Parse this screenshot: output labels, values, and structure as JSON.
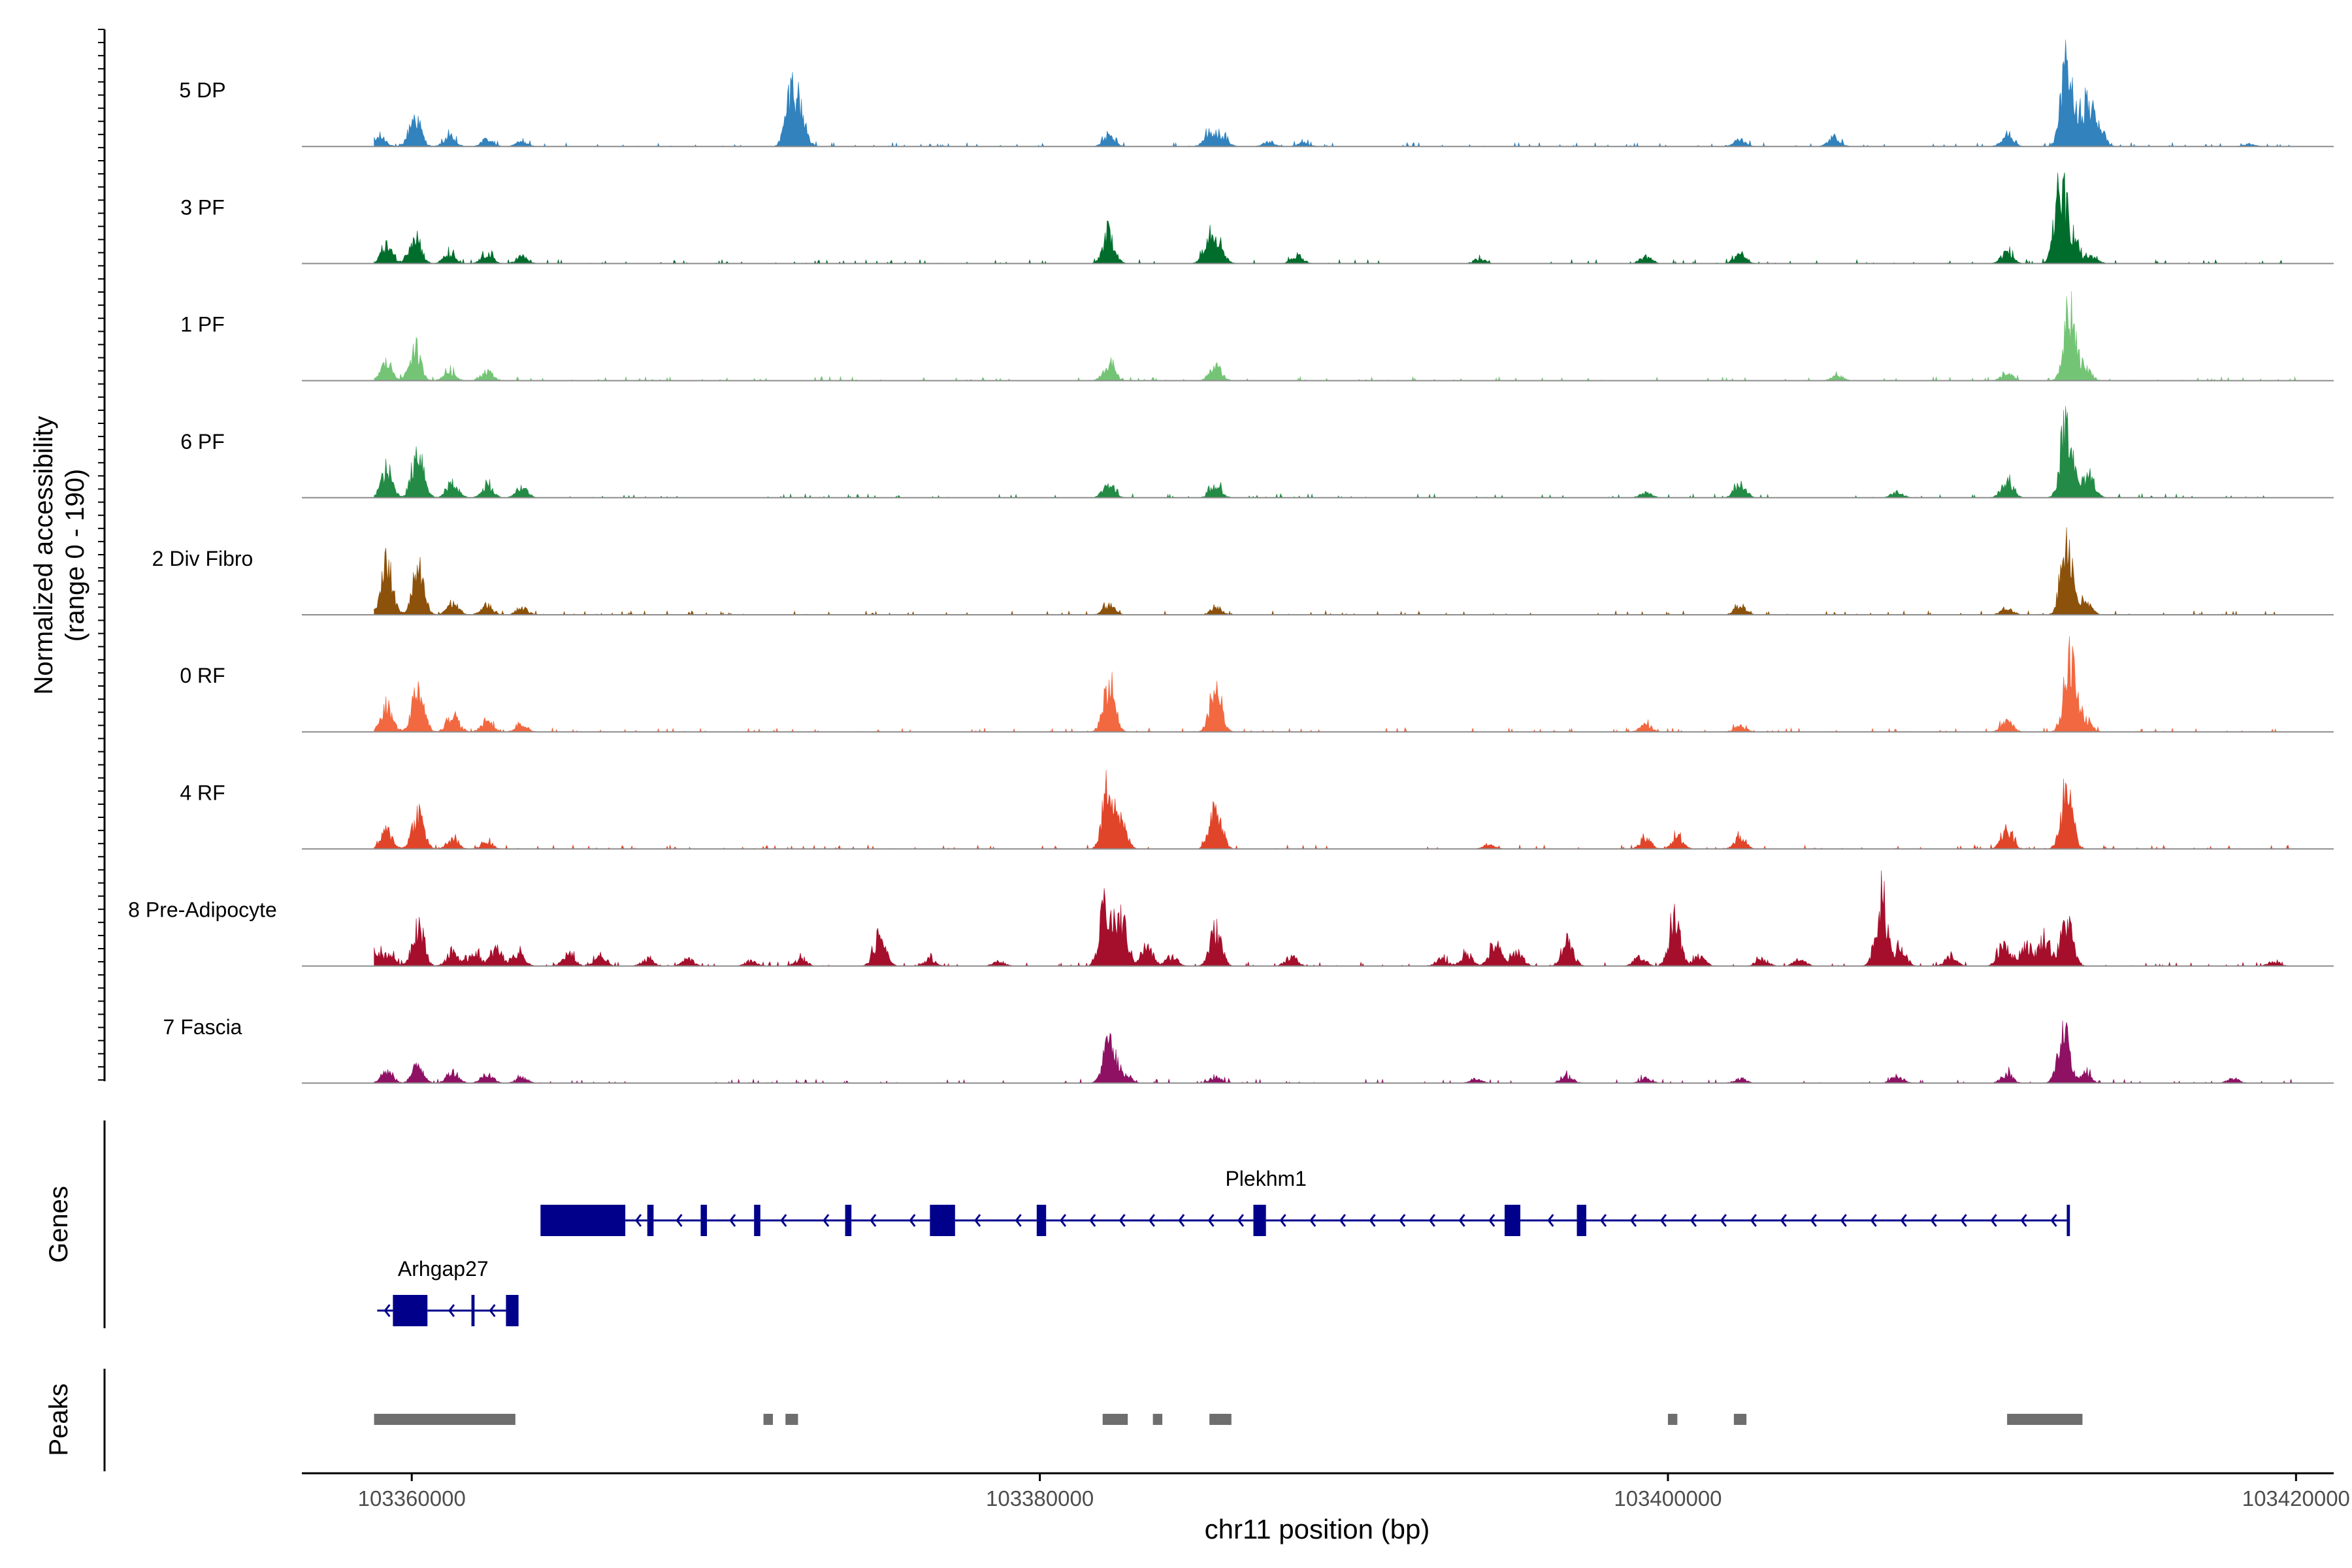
{
  "chart_data": {
    "type": "area",
    "title": "",
    "ylabel_line1": "Normalized accessibility",
    "ylabel_line2": "(range 0 - 190)",
    "xlabel": "chr11 position (bp)",
    "xlim": [
      103356500,
      103421200
    ],
    "ylim": [
      0,
      190
    ],
    "x_ticks": [
      103360000,
      103380000,
      103400000,
      103420000
    ],
    "x_tick_labels": [
      "103360000",
      "103380000",
      "103400000",
      "103420000"
    ],
    "region_start": 103358800,
    "region_end": 103420000,
    "series": [
      {
        "name": "5 DP",
        "color": "#3182bd",
        "peaks": [
          [
            103359000,
            8
          ],
          [
            103360100,
            25
          ],
          [
            103361200,
            8
          ],
          [
            103362400,
            6
          ],
          [
            103363500,
            4
          ],
          [
            103372100,
            46
          ],
          [
            103372400,
            20
          ],
          [
            103382200,
            8
          ],
          [
            103385400,
            10
          ],
          [
            103385800,
            8
          ],
          [
            103387300,
            4
          ],
          [
            103388400,
            3
          ],
          [
            103402300,
            6
          ],
          [
            103405300,
            8
          ],
          [
            103410800,
            10
          ],
          [
            103412700,
            65
          ],
          [
            103413300,
            35
          ],
          [
            103413700,
            18
          ],
          [
            103418500,
            2
          ]
        ]
      },
      {
        "name": "3 PF",
        "color": "#006d2c",
        "peaks": [
          [
            103359200,
            15
          ],
          [
            103360100,
            25
          ],
          [
            103361200,
            8
          ],
          [
            103362400,
            8
          ],
          [
            103363500,
            6
          ],
          [
            103382200,
            25
          ],
          [
            103385400,
            24
          ],
          [
            103385700,
            14
          ],
          [
            103388200,
            7
          ],
          [
            103394000,
            4
          ],
          [
            103399300,
            6
          ],
          [
            103402300,
            9
          ],
          [
            103410800,
            10
          ],
          [
            103412500,
            60
          ],
          [
            103412900,
            20
          ],
          [
            103413500,
            6
          ]
        ]
      },
      {
        "name": "1 PF",
        "color": "#74c476",
        "peaks": [
          [
            103359200,
            15
          ],
          [
            103360100,
            25
          ],
          [
            103361200,
            8
          ],
          [
            103362400,
            8
          ],
          [
            103382200,
            14
          ],
          [
            103385600,
            12
          ],
          [
            103405400,
            4
          ],
          [
            103410800,
            6
          ],
          [
            103412800,
            60
          ],
          [
            103413300,
            10
          ]
        ]
      },
      {
        "name": "6 PF",
        "color": "#238b45",
        "peaks": [
          [
            103359200,
            22
          ],
          [
            103360200,
            40
          ],
          [
            103361300,
            12
          ],
          [
            103362400,
            10
          ],
          [
            103363500,
            9
          ],
          [
            103382200,
            12
          ],
          [
            103385600,
            10
          ],
          [
            103399300,
            4
          ],
          [
            103402300,
            12
          ],
          [
            103407300,
            5
          ],
          [
            103410800,
            14
          ],
          [
            103412700,
            66
          ],
          [
            103413400,
            20
          ]
        ]
      },
      {
        "name": "2 Div Fibro",
        "color": "#8c510a",
        "peaks": [
          [
            103359200,
            40
          ],
          [
            103360200,
            35
          ],
          [
            103361300,
            10
          ],
          [
            103362400,
            8
          ],
          [
            103363500,
            6
          ],
          [
            103382200,
            8
          ],
          [
            103385600,
            6
          ],
          [
            103402300,
            8
          ],
          [
            103410800,
            6
          ],
          [
            103412700,
            64
          ],
          [
            103413300,
            10
          ]
        ]
      },
      {
        "name": "0 RF",
        "color": "#f26841",
        "peaks": [
          [
            103359200,
            20
          ],
          [
            103360200,
            38
          ],
          [
            103361300,
            15
          ],
          [
            103362400,
            10
          ],
          [
            103363500,
            6
          ],
          [
            103382200,
            40
          ],
          [
            103385600,
            35
          ],
          [
            103399300,
            6
          ],
          [
            103402300,
            5
          ],
          [
            103410800,
            10
          ],
          [
            103412800,
            60
          ],
          [
            103413300,
            10
          ]
        ]
      },
      {
        "name": "4 RF",
        "color": "#e0452a",
        "peaks": [
          [
            103359200,
            15
          ],
          [
            103360200,
            30
          ],
          [
            103361300,
            8
          ],
          [
            103362400,
            6
          ],
          [
            103382200,
            55
          ],
          [
            103382600,
            18
          ],
          [
            103385600,
            40
          ],
          [
            103394300,
            4
          ],
          [
            103399300,
            8
          ],
          [
            103400300,
            10
          ],
          [
            103402300,
            10
          ],
          [
            103410800,
            15
          ],
          [
            103412700,
            48
          ]
        ]
      },
      {
        "name": "8 Pre-Adipocyte",
        "color": "#a50f2c",
        "peaks": [
          [
            103358800,
            15
          ],
          [
            103359300,
            10
          ],
          [
            103360200,
            35
          ],
          [
            103361300,
            12
          ],
          [
            103362000,
            12
          ],
          [
            103362700,
            14
          ],
          [
            103363400,
            12
          ],
          [
            103365000,
            10
          ],
          [
            103366000,
            8
          ],
          [
            103367500,
            6
          ],
          [
            103368800,
            6
          ],
          [
            103370800,
            4
          ],
          [
            103372400,
            6
          ],
          [
            103374900,
            25
          ],
          [
            103376500,
            6
          ],
          [
            103378700,
            4
          ],
          [
            103382100,
            48
          ],
          [
            103382600,
            38
          ],
          [
            103383400,
            16
          ],
          [
            103384200,
            8
          ],
          [
            103385600,
            30
          ],
          [
            103388000,
            8
          ],
          [
            103392800,
            6
          ],
          [
            103393600,
            10
          ],
          [
            103394500,
            18
          ],
          [
            103395200,
            12
          ],
          [
            103396800,
            22
          ],
          [
            103399100,
            8
          ],
          [
            103400200,
            36
          ],
          [
            103401000,
            8
          ],
          [
            103403000,
            6
          ],
          [
            103404200,
            6
          ],
          [
            103406800,
            55
          ],
          [
            103407400,
            14
          ],
          [
            103409000,
            8
          ],
          [
            103410700,
            20
          ],
          [
            103411400,
            18
          ],
          [
            103412000,
            24
          ],
          [
            103412700,
            38
          ],
          [
            103419300,
            4
          ]
        ]
      },
      {
        "name": "7 Fascia",
        "color": "#8e1164",
        "peaks": [
          [
            103359200,
            10
          ],
          [
            103360200,
            15
          ],
          [
            103361300,
            10
          ],
          [
            103362400,
            8
          ],
          [
            103363500,
            5
          ],
          [
            103382200,
            34
          ],
          [
            103382700,
            8
          ],
          [
            103385600,
            5
          ],
          [
            103393900,
            4
          ],
          [
            103396800,
            6
          ],
          [
            103399300,
            4
          ],
          [
            103402300,
            4
          ],
          [
            103407300,
            6
          ],
          [
            103410800,
            8
          ],
          [
            103412600,
            40
          ],
          [
            103413300,
            8
          ],
          [
            103418000,
            4
          ]
        ]
      }
    ],
    "genes": [
      {
        "name": "Plekhm1",
        "strand": "-",
        "start": 103364100,
        "end": 103412800,
        "exons": [
          [
            103364100,
            103366800
          ],
          [
            103367500,
            103367700
          ],
          [
            103369200,
            103369400
          ],
          [
            103370900,
            103371100
          ],
          [
            103373800,
            103374000
          ],
          [
            103376500,
            103377300
          ],
          [
            103379900,
            103380200
          ],
          [
            103386800,
            103387200
          ],
          [
            103394800,
            103395300
          ],
          [
            103397100,
            103397400
          ],
          [
            103412700,
            103412800
          ]
        ],
        "introns": [
          [
            103366800,
            103367500
          ],
          [
            103367700,
            103369200
          ],
          [
            103369400,
            103370900
          ],
          [
            103371100,
            103373800
          ],
          [
            103374000,
            103376500
          ],
          [
            103377300,
            103379900
          ],
          [
            103380200,
            103386800
          ],
          [
            103387200,
            103394800
          ],
          [
            103395300,
            103397100
          ],
          [
            103397400,
            103412700
          ]
        ]
      },
      {
        "name": "Arhgap27",
        "strand": "-",
        "start": 103358900,
        "end": 103363400,
        "exons": [
          [
            103359400,
            103360500
          ],
          [
            103361900,
            103362000
          ],
          [
            103363000,
            103363400
          ]
        ],
        "introns": [
          [
            103358900,
            103359400
          ],
          [
            103360500,
            103361900
          ],
          [
            103362000,
            103363000
          ]
        ]
      }
    ],
    "peak_regions": [
      [
        103358800,
        103363300
      ],
      [
        103371200,
        103371500
      ],
      [
        103371900,
        103372300
      ],
      [
        103382000,
        103382800
      ],
      [
        103383600,
        103383900
      ],
      [
        103385400,
        103386100
      ],
      [
        103400000,
        103400300
      ],
      [
        103402100,
        103402500
      ],
      [
        103410800,
        103413200
      ]
    ],
    "panel_labels": {
      "genes": "Genes",
      "peaks": "Peaks"
    }
  }
}
